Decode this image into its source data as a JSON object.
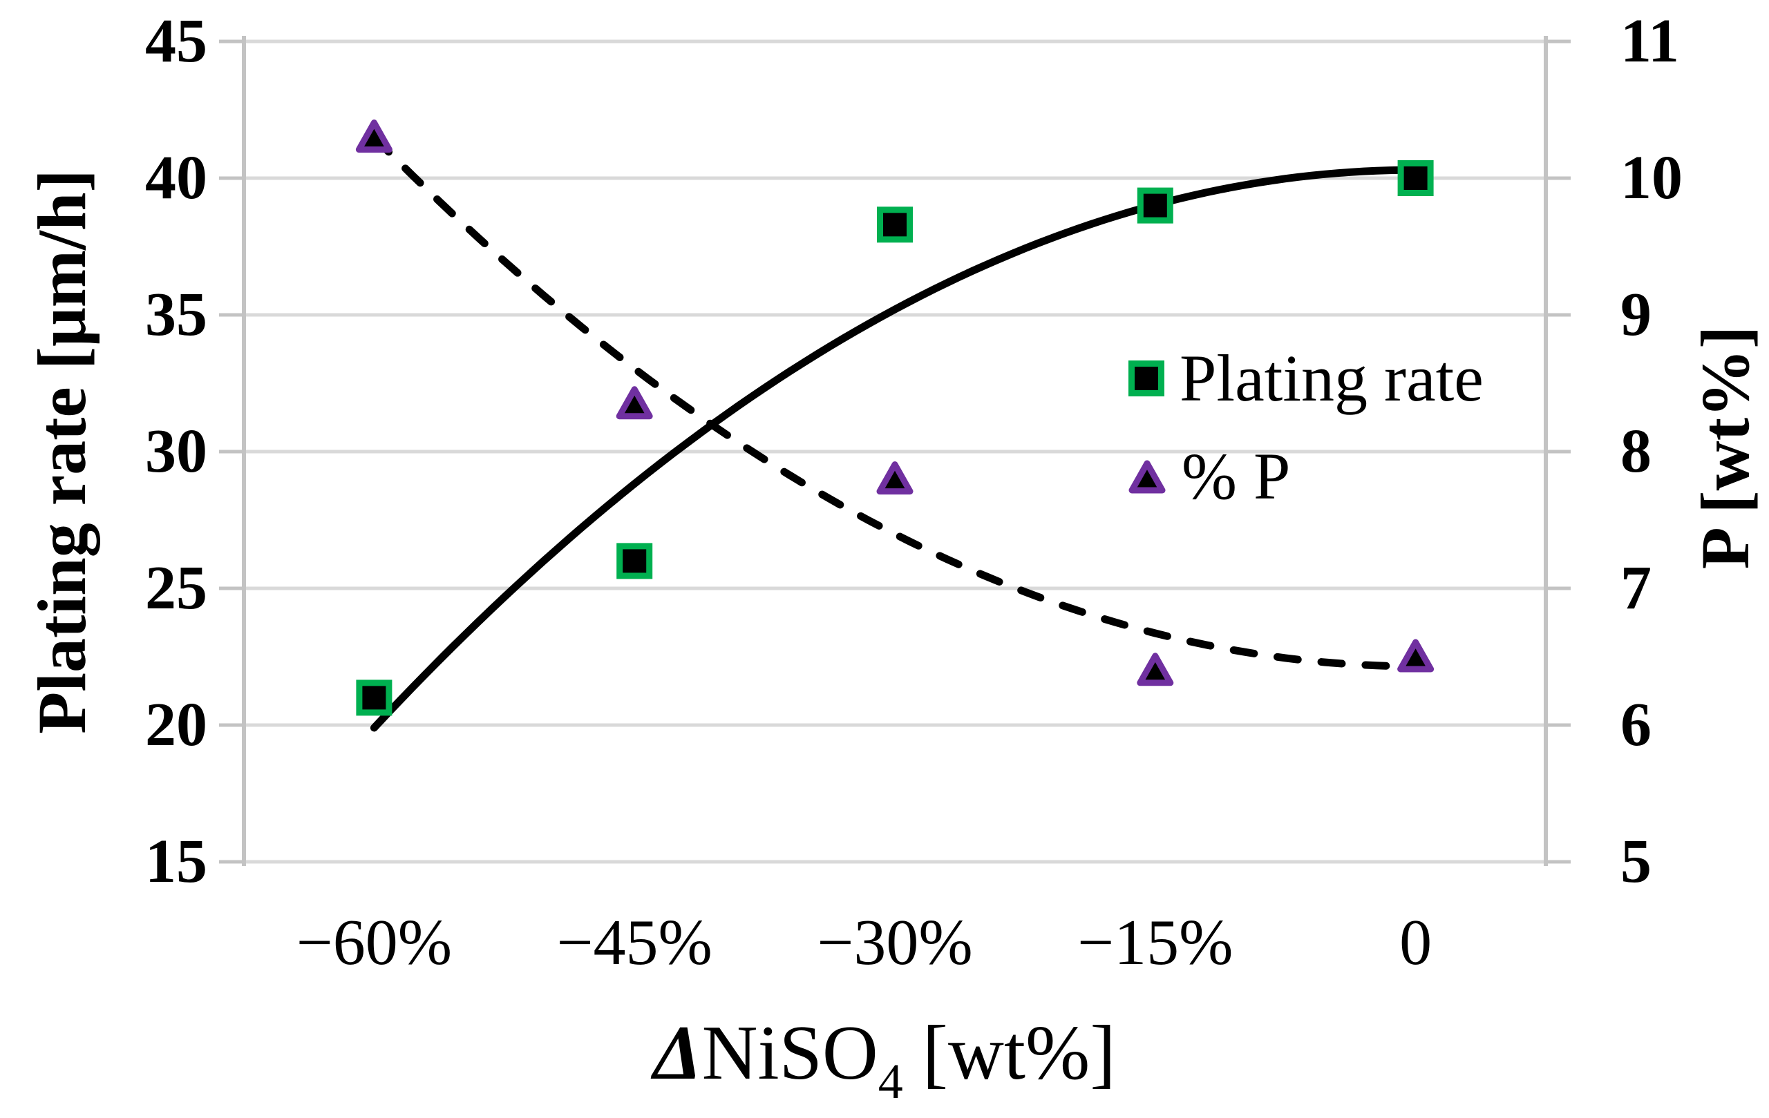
{
  "chart_data": {
    "type": "scatter",
    "title": "",
    "x_axis": {
      "title_delta": "Δ",
      "title_formula": "NiSO",
      "title_subscript": "4",
      "title_unit": " [wt%]",
      "categories": [
        "−60%",
        "−45%",
        "−30%",
        "−15%",
        "0"
      ]
    },
    "left_axis": {
      "title": "Plating rate [μm/h]",
      "ticks": [
        "45",
        "40",
        "35",
        "30",
        "25",
        "20",
        "15"
      ],
      "min": 15,
      "max": 45,
      "grid": true
    },
    "right_axis": {
      "title": "P [wt%]",
      "ticks": [
        "11",
        "10",
        "9",
        "8",
        "7",
        "6",
        "5"
      ],
      "min": 5,
      "max": 11
    },
    "series": [
      {
        "name": "Plating rate",
        "axis": "left",
        "marker": "square",
        "marker_border_color": "#00B050",
        "marker_fill": "#000000",
        "values": [
          21,
          26,
          38.3,
          39,
          40
        ],
        "trend": {
          "shape": "quadratic",
          "style": "solid",
          "start_index": 0,
          "start_value": 19.9,
          "vertex_index": 4,
          "vertex_value": 40.3
        }
      },
      {
        "name": "% P",
        "axis": "right",
        "marker": "triangle",
        "marker_border_color": "#7030A0",
        "marker_fill": "#000000",
        "values": [
          10.3,
          8.35,
          7.8,
          6.4,
          6.5
        ],
        "trend": {
          "shape": "quadratic",
          "style": "dashed",
          "start_index": 0,
          "start_value": 10.3,
          "vertex_index": 4,
          "vertex_value": 6.43
        }
      }
    ],
    "legend": {
      "position": "middle-right",
      "items": [
        {
          "label": "Plating rate",
          "marker": "square"
        },
        {
          "label": "% P",
          "marker": "triangle"
        }
      ]
    },
    "colors": {
      "grid": "#D9D9D9",
      "axis_line": "#C3C3C3",
      "trend_line": "#000000",
      "marker_fill": "#000000",
      "square_border": "#00B050",
      "triangle_border": "#7030A0"
    }
  }
}
